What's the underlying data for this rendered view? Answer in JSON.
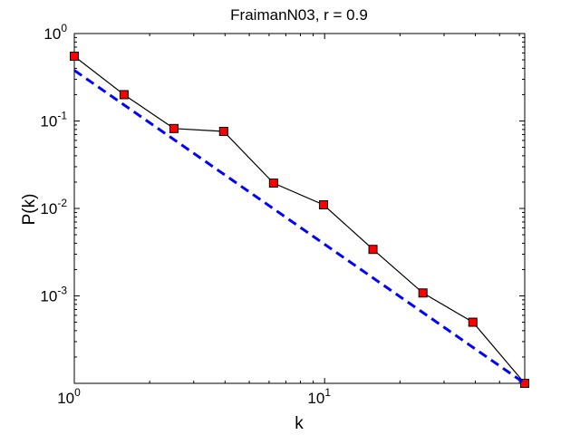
{
  "chart_data": {
    "type": "line",
    "title": "FraimanN03, r = 0.9",
    "xlabel": "k",
    "ylabel": "P(k)",
    "x_scale": "log",
    "y_scale": "log",
    "xlim": [
      1,
      63
    ],
    "ylim": [
      0.0001,
      1
    ],
    "x_ticks": [
      {
        "value": 1,
        "base": "10",
        "exp": "0"
      },
      {
        "value": 10,
        "base": "10",
        "exp": "1"
      }
    ],
    "y_ticks": [
      {
        "value": 1,
        "base": "10",
        "exp": "0"
      },
      {
        "value": 0.1,
        "base": "10",
        "exp": "-1"
      },
      {
        "value": 0.01,
        "base": "10",
        "exp": "-2"
      },
      {
        "value": 0.001,
        "base": "10",
        "exp": "-3"
      }
    ],
    "grid": false,
    "series": [
      {
        "style": "solid-line-square-markers",
        "color": "#000000",
        "marker_color": "#ff0000",
        "x": [
          1,
          1.58,
          2.5,
          3.95,
          6.25,
          9.9,
          15.6,
          24.7,
          39.1,
          63
        ],
        "y": [
          0.55,
          0.2,
          0.082,
          0.076,
          0.0195,
          0.011,
          0.0034,
          0.00108,
          0.0005,
          0.0001
        ]
      },
      {
        "style": "dashed",
        "color": "#0000ff",
        "x": [
          1,
          63
        ],
        "y": [
          0.38,
          0.0001
        ]
      }
    ]
  }
}
